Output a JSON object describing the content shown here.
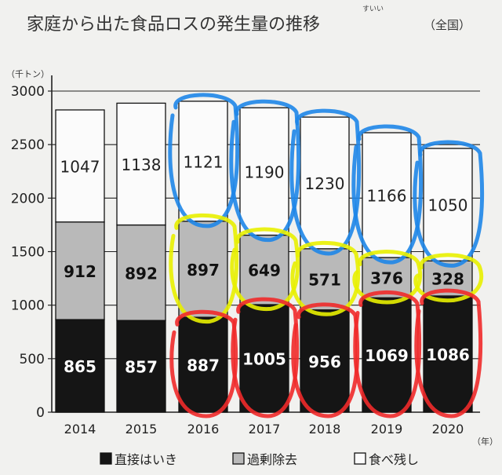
{
  "chart_data": {
    "type": "bar",
    "stacked": true,
    "title": "家庭から出た食品ロスの発生量の推移",
    "title_ruby": "すいい",
    "subtitle": "（全国）",
    "ylabel": "（千トン）",
    "xlabel": "（年）",
    "ylim": [
      0,
      3000
    ],
    "yticks": [
      "0",
      "500",
      "1000",
      "1500",
      "2000",
      "2500",
      "3000"
    ],
    "grid": true,
    "categories": [
      "2014",
      "2015",
      "2016",
      "2017",
      "2018",
      "2019",
      "2020"
    ],
    "series": [
      {
        "name": "直接はいき",
        "values": [
          865,
          857,
          887,
          1005,
          956,
          1069,
          1086
        ],
        "color": "#151515",
        "label_color": "#ffffff"
      },
      {
        "name": "過剰除去",
        "values": [
          912,
          892,
          897,
          649,
          571,
          376,
          328
        ],
        "color": "#b9b9b9",
        "label_color": "#111111"
      },
      {
        "name": "食べ残し",
        "values": [
          1047,
          1138,
          1121,
          1190,
          1230,
          1166,
          1050
        ],
        "color": "#fbfbfb",
        "label_color": "#222222"
      }
    ],
    "legend_position": "bottom"
  },
  "annotations": {
    "blue": [
      "2016",
      "2017",
      "2018",
      "2019",
      "2020"
    ],
    "yellow": [
      "2016",
      "2017",
      "2018",
      "2019",
      "2020"
    ],
    "red": [
      "2016",
      "2017",
      "2018",
      "2019",
      "2020"
    ],
    "colors": {
      "blue": "#1e86e8",
      "yellow": "#e8f000",
      "red": "#ef2a2a"
    }
  }
}
